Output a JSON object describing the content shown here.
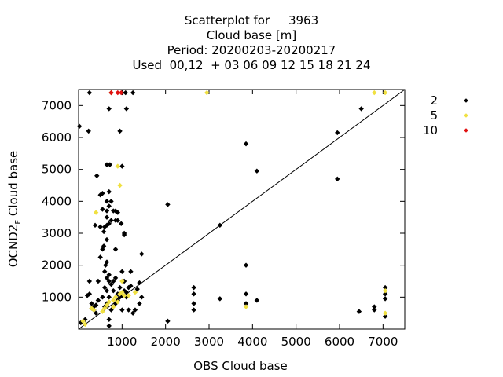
{
  "title_lines": [
    "Scatterplot for     3963",
    "Cloud base [m]",
    "Period: 20200203-20200217",
    "Used  00,12  + 03 06 09 12 15 18 21 24"
  ],
  "colors": {
    "count_2": "#000000",
    "count_5": "#f0e040",
    "count_10": "#e01010"
  },
  "chart_data": {
    "type": "scatter",
    "xlabel": "OBS Cloud base",
    "ylabel": "OCND2",
    "ylabel_subscript": "F",
    "ylabel_suffix": " Cloud base",
    "xlim": [
      0,
      7500
    ],
    "ylim": [
      0,
      7500
    ],
    "xticks": [
      1000,
      2000,
      3000,
      4000,
      5000,
      6000,
      7000
    ],
    "yticks": [
      1000,
      2000,
      3000,
      4000,
      5000,
      6000,
      7000
    ],
    "diagonal": true,
    "grid": false,
    "legend_position": "right",
    "legend": [
      {
        "label": "2",
        "color": "#000000"
      },
      {
        "label": "5",
        "color": "#f0e040"
      },
      {
        "label": "10",
        "color": "#e01010"
      }
    ],
    "series": [
      {
        "name": "2",
        "color": "#000000",
        "points": [
          [
            20,
            6350
          ],
          [
            250,
            7400
          ],
          [
            230,
            6200
          ],
          [
            50,
            200
          ],
          [
            150,
            300
          ],
          [
            200,
            1050
          ],
          [
            250,
            1100
          ],
          [
            250,
            1500
          ],
          [
            300,
            800
          ],
          [
            300,
            650
          ],
          [
            350,
            700
          ],
          [
            350,
            600
          ],
          [
            380,
            3250
          ],
          [
            400,
            500
          ],
          [
            400,
            750
          ],
          [
            420,
            4800
          ],
          [
            450,
            1500
          ],
          [
            450,
            900
          ],
          [
            500,
            3200
          ],
          [
            500,
            4200
          ],
          [
            500,
            2250
          ],
          [
            550,
            4250
          ],
          [
            550,
            3750
          ],
          [
            550,
            2500
          ],
          [
            550,
            1000
          ],
          [
            580,
            2600
          ],
          [
            580,
            3050
          ],
          [
            600,
            3200
          ],
          [
            600,
            700
          ],
          [
            600,
            1800
          ],
          [
            600,
            1300
          ],
          [
            620,
            2000
          ],
          [
            650,
            5150
          ],
          [
            650,
            4000
          ],
          [
            650,
            3700
          ],
          [
            650,
            3500
          ],
          [
            650,
            3250
          ],
          [
            650,
            2800
          ],
          [
            650,
            2100
          ],
          [
            650,
            1600
          ],
          [
            650,
            1200
          ],
          [
            650,
            800
          ],
          [
            700,
            6900
          ],
          [
            700,
            4300
          ],
          [
            700,
            3850
          ],
          [
            700,
            3300
          ],
          [
            700,
            1700
          ],
          [
            700,
            1500
          ],
          [
            700,
            1000
          ],
          [
            700,
            300
          ],
          [
            700,
            100
          ],
          [
            720,
            5150
          ],
          [
            750,
            7400
          ],
          [
            750,
            4000
          ],
          [
            750,
            3400
          ],
          [
            750,
            1400
          ],
          [
            750,
            600
          ],
          [
            800,
            3700
          ],
          [
            800,
            1200
          ],
          [
            800,
            1500
          ],
          [
            850,
            3700
          ],
          [
            850,
            3400
          ],
          [
            850,
            2500
          ],
          [
            850,
            1600
          ],
          [
            850,
            800
          ],
          [
            900,
            3650
          ],
          [
            900,
            3400
          ],
          [
            900,
            1100
          ],
          [
            900,
            900
          ],
          [
            950,
            6200
          ],
          [
            950,
            1300
          ],
          [
            950,
            1000
          ],
          [
            980,
            3300
          ],
          [
            1000,
            7400
          ],
          [
            1000,
            5100
          ],
          [
            1000,
            1800
          ],
          [
            1000,
            1050
          ],
          [
            1000,
            600
          ],
          [
            1050,
            3000
          ],
          [
            1050,
            2950
          ],
          [
            1050,
            1500
          ],
          [
            1050,
            1200
          ],
          [
            1080,
            7400
          ],
          [
            1100,
            6900
          ],
          [
            1100,
            1150
          ],
          [
            1100,
            1000
          ],
          [
            1150,
            600
          ],
          [
            1150,
            1300
          ],
          [
            1200,
            1350
          ],
          [
            1200,
            1800
          ],
          [
            1250,
            7400
          ],
          [
            1250,
            500
          ],
          [
            1300,
            600
          ],
          [
            1400,
            800
          ],
          [
            1400,
            1450
          ],
          [
            1450,
            1000
          ],
          [
            1450,
            2350
          ],
          [
            1350,
            1250
          ],
          [
            2050,
            3900
          ],
          [
            2050,
            250
          ],
          [
            2650,
            1300
          ],
          [
            2650,
            1100
          ],
          [
            2650,
            800
          ],
          [
            2650,
            600
          ],
          [
            3250,
            3250
          ],
          [
            3250,
            950
          ],
          [
            3850,
            5800
          ],
          [
            3850,
            2000
          ],
          [
            3850,
            1100
          ],
          [
            3850,
            800
          ],
          [
            4100,
            4950
          ],
          [
            4100,
            900
          ],
          [
            5950,
            6150
          ],
          [
            5950,
            4700
          ],
          [
            6450,
            550
          ],
          [
            6500,
            6900
          ],
          [
            6800,
            700
          ],
          [
            6800,
            600
          ],
          [
            7050,
            1300
          ],
          [
            7050,
            1100
          ],
          [
            7050,
            950
          ],
          [
            7050,
            400
          ]
        ]
      },
      {
        "name": "5",
        "color": "#f0e040",
        "points": [
          [
            100,
            250
          ],
          [
            150,
            150
          ],
          [
            300,
            650
          ],
          [
            350,
            600
          ],
          [
            400,
            3650
          ],
          [
            550,
            550
          ],
          [
            600,
            650
          ],
          [
            650,
            750
          ],
          [
            700,
            850
          ],
          [
            750,
            7400
          ],
          [
            800,
            700
          ],
          [
            800,
            900
          ],
          [
            850,
            1000
          ],
          [
            900,
            5100
          ],
          [
            900,
            850
          ],
          [
            950,
            1100
          ],
          [
            950,
            4500
          ],
          [
            1000,
            1500
          ],
          [
            1000,
            1150
          ],
          [
            1050,
            1050
          ],
          [
            1150,
            1050
          ],
          [
            1300,
            1150
          ],
          [
            2950,
            7400
          ],
          [
            3850,
            700
          ],
          [
            6800,
            7400
          ],
          [
            7050,
            7400
          ],
          [
            7050,
            1200
          ],
          [
            7050,
            500
          ]
        ]
      },
      {
        "name": "10",
        "color": "#e01010",
        "points": [
          [
            750,
            7400
          ],
          [
            900,
            7400
          ],
          [
            980,
            7400
          ]
        ]
      }
    ]
  }
}
